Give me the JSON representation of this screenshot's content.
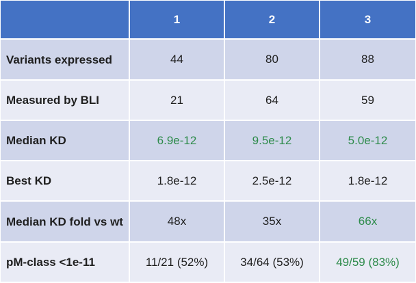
{
  "table": {
    "header": [
      "",
      "1",
      "2",
      "3"
    ],
    "rows": [
      {
        "label": "Variants expressed",
        "cells": [
          {
            "value": "44",
            "highlight": false
          },
          {
            "value": "80",
            "highlight": false
          },
          {
            "value": "88",
            "highlight": false
          }
        ]
      },
      {
        "label": "Measured by BLI",
        "cells": [
          {
            "value": "21",
            "highlight": false
          },
          {
            "value": "64",
            "highlight": false
          },
          {
            "value": "59",
            "highlight": false
          }
        ]
      },
      {
        "label": "Median KD",
        "cells": [
          {
            "value": "6.9e-12",
            "highlight": true
          },
          {
            "value": "9.5e-12",
            "highlight": true
          },
          {
            "value": "5.0e-12",
            "highlight": true
          }
        ]
      },
      {
        "label": "Best KD",
        "cells": [
          {
            "value": "1.8e-12",
            "highlight": false
          },
          {
            "value": "2.5e-12",
            "highlight": false
          },
          {
            "value": "1.8e-12",
            "highlight": false
          }
        ]
      },
      {
        "label": "Median KD fold vs wt",
        "cells": [
          {
            "value": "48x",
            "highlight": false
          },
          {
            "value": "35x",
            "highlight": false
          },
          {
            "value": "66x",
            "highlight": true
          }
        ]
      },
      {
        "label": "pM-class <1e-11",
        "cells": [
          {
            "value": "11/21 (52%)",
            "highlight": false
          },
          {
            "value": "34/64 (53%)",
            "highlight": false
          },
          {
            "value": "49/59 (83%)",
            "highlight": true
          }
        ]
      }
    ]
  },
  "colors": {
    "header_bg": "#4472c4",
    "row_dark": "#cfd5ea",
    "row_light": "#e9ebf5",
    "highlight_text": "#2e8b4b"
  }
}
